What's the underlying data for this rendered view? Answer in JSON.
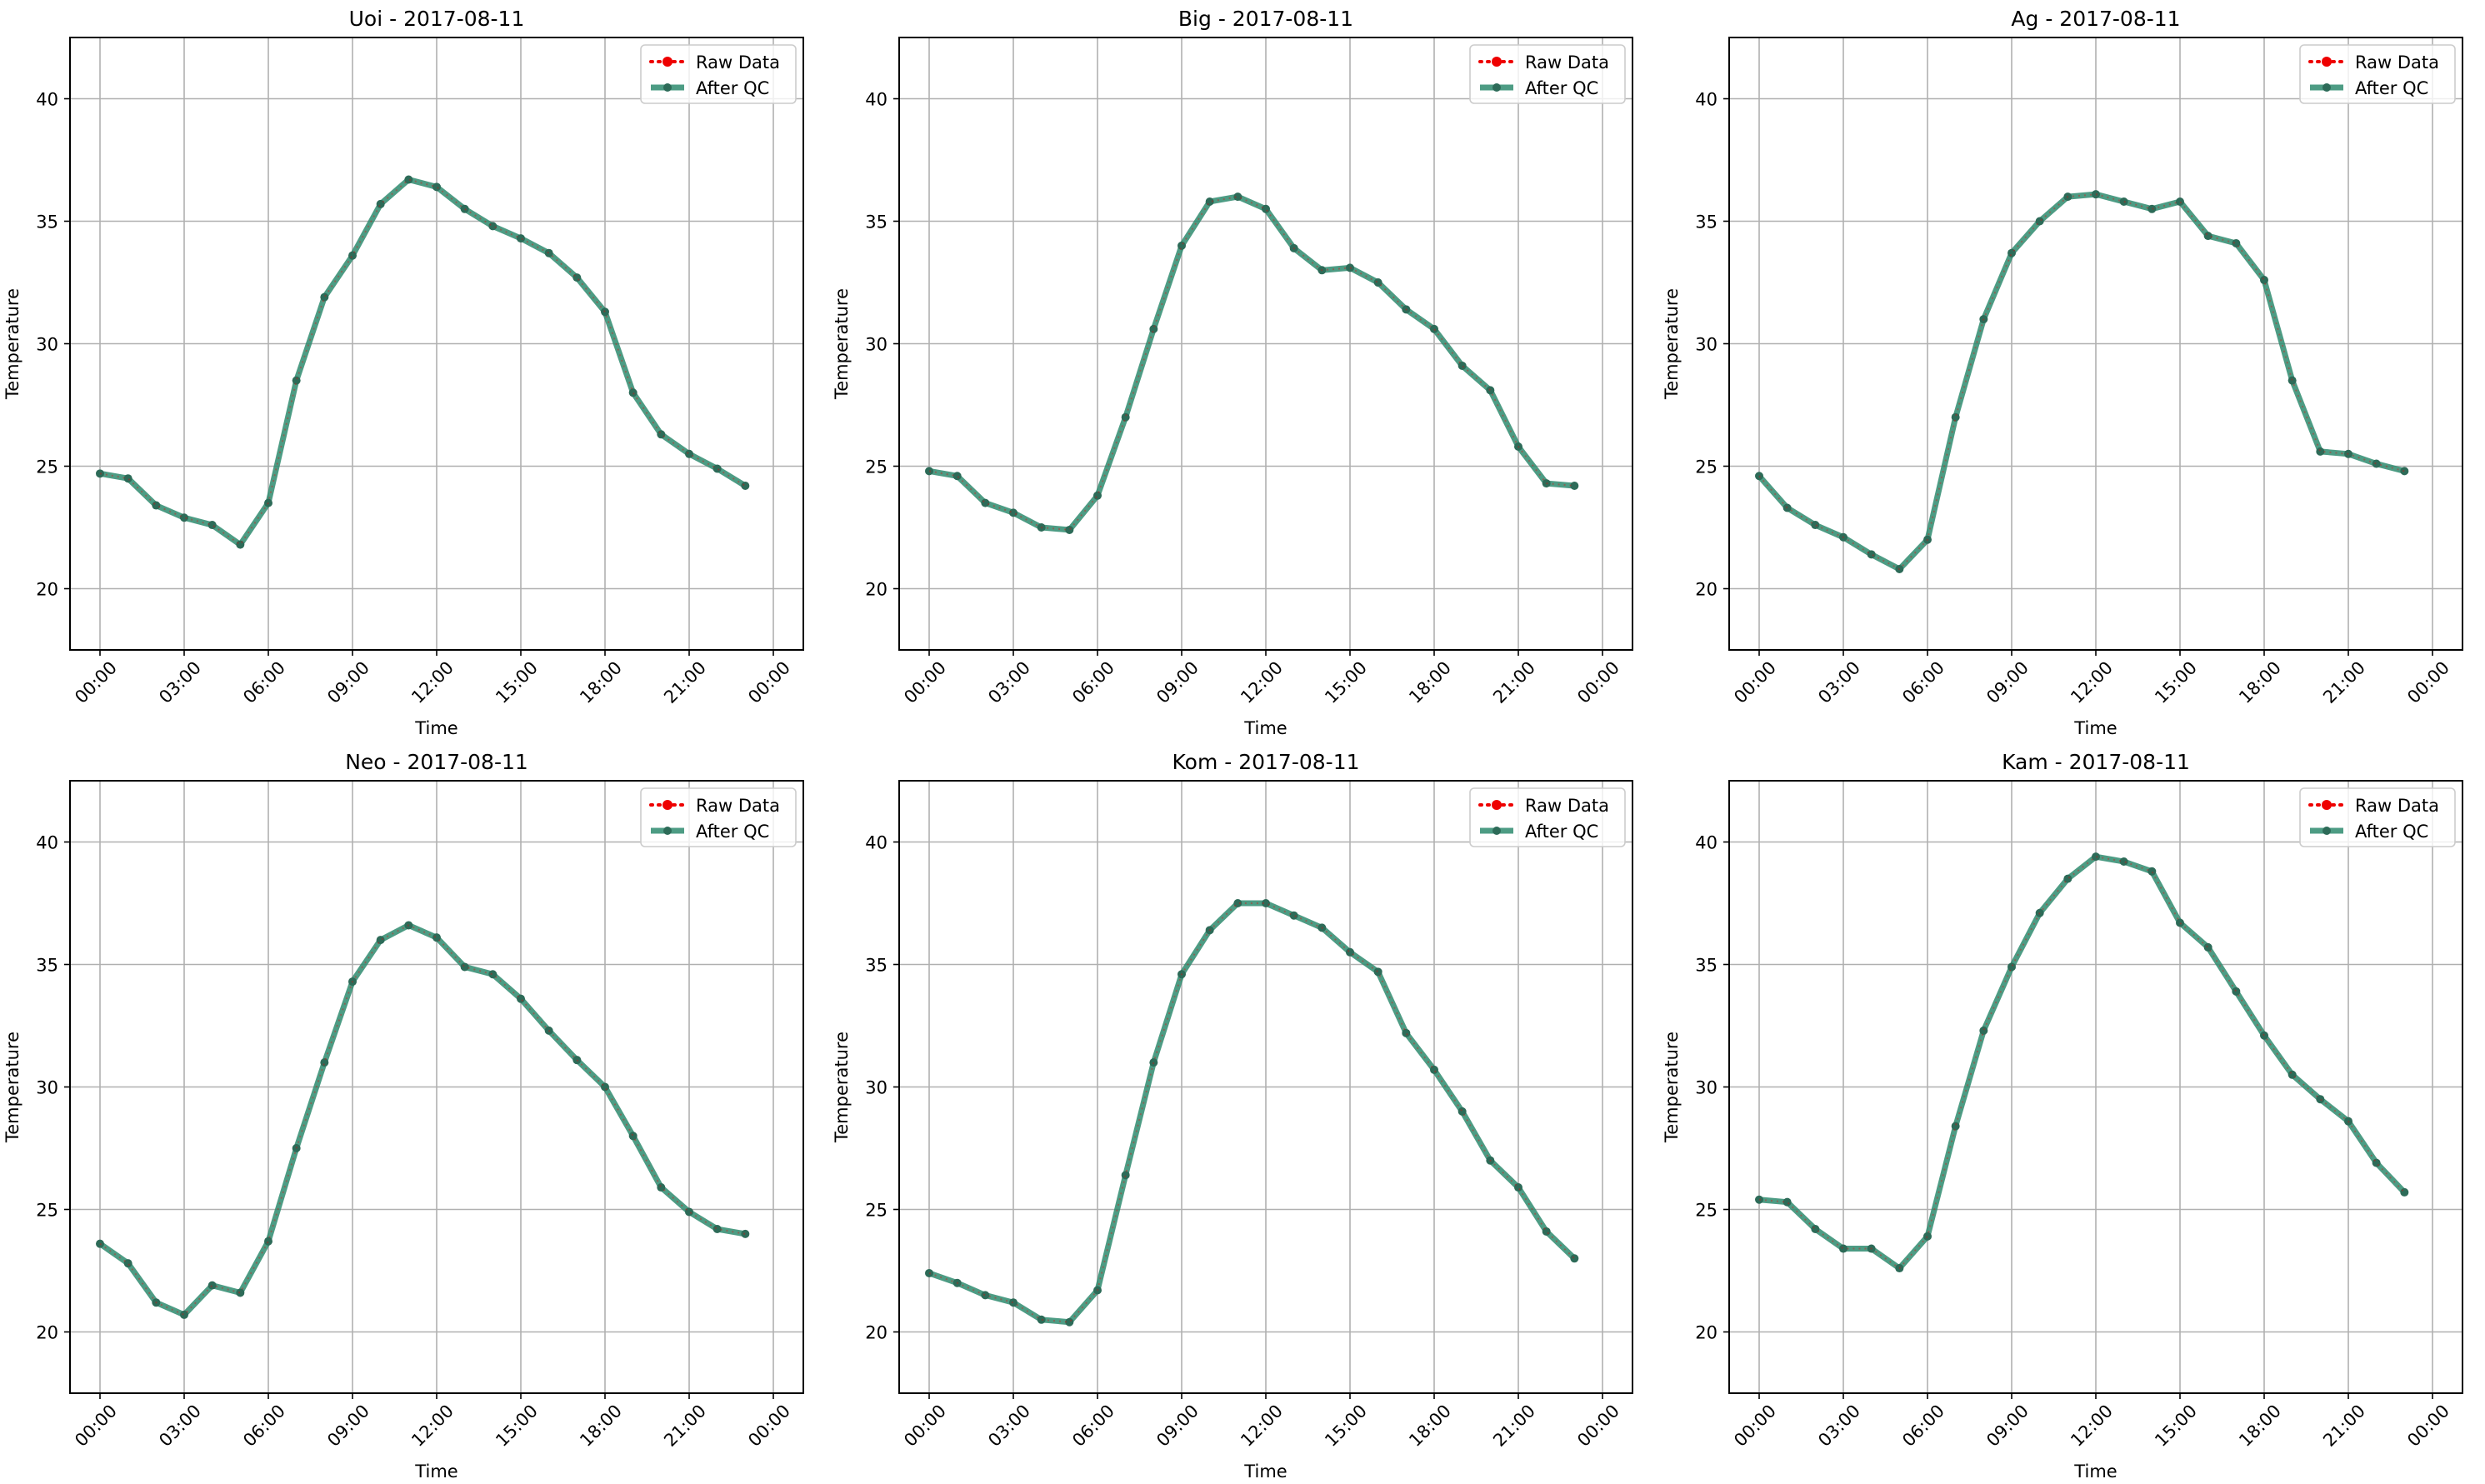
{
  "figure": {
    "ylabel": "Temperature",
    "xlabel": "Time",
    "legend": [
      "Raw Data",
      "After QC"
    ],
    "colors": {
      "raw": "#ee0000",
      "qc": "#2e8b6e",
      "qc_marker": "#2d6b58",
      "grid": "#b0b0b0"
    }
  },
  "chart_data": [
    {
      "type": "line",
      "title": "Uoi - 2017-08-11",
      "xlabel": "Time",
      "ylabel": "Temperature",
      "x": [
        "00:00",
        "01:00",
        "02:00",
        "03:00",
        "04:00",
        "05:00",
        "06:00",
        "07:00",
        "08:00",
        "09:00",
        "10:00",
        "11:00",
        "12:00",
        "13:00",
        "14:00",
        "15:00",
        "16:00",
        "17:00",
        "18:00",
        "19:00",
        "20:00",
        "21:00",
        "22:00",
        "23:00"
      ],
      "xticks": [
        "00:00",
        "03:00",
        "06:00",
        "09:00",
        "12:00",
        "15:00",
        "18:00",
        "21:00",
        "00:00"
      ],
      "yticks": [
        20,
        25,
        30,
        35,
        40
      ],
      "ylim": [
        17.5,
        42.5
      ],
      "grid": true,
      "legend_position": "upper right",
      "series": [
        {
          "name": "Raw Data",
          "values": [
            24.7,
            24.5,
            23.4,
            22.9,
            22.6,
            21.8,
            23.5,
            28.5,
            31.9,
            33.6,
            35.7,
            36.7,
            36.4,
            35.5,
            34.8,
            34.3,
            33.7,
            32.7,
            31.3,
            28.0,
            26.3,
            25.5,
            24.9,
            24.2
          ]
        },
        {
          "name": "After QC",
          "values": [
            24.7,
            24.5,
            23.4,
            22.9,
            22.6,
            21.8,
            23.5,
            28.5,
            31.9,
            33.6,
            35.7,
            36.7,
            36.4,
            35.5,
            34.8,
            34.3,
            33.7,
            32.7,
            31.3,
            28.0,
            26.3,
            25.5,
            24.9,
            24.2
          ]
        }
      ]
    },
    {
      "type": "line",
      "title": "Big - 2017-08-11",
      "xlabel": "Time",
      "ylabel": "Temperature",
      "x": [
        "00:00",
        "01:00",
        "02:00",
        "03:00",
        "04:00",
        "05:00",
        "06:00",
        "07:00",
        "08:00",
        "09:00",
        "10:00",
        "11:00",
        "12:00",
        "13:00",
        "14:00",
        "15:00",
        "16:00",
        "17:00",
        "18:00",
        "19:00",
        "20:00",
        "21:00",
        "22:00",
        "23:00"
      ],
      "xticks": [
        "00:00",
        "03:00",
        "06:00",
        "09:00",
        "12:00",
        "15:00",
        "18:00",
        "21:00",
        "00:00"
      ],
      "yticks": [
        20,
        25,
        30,
        35,
        40
      ],
      "ylim": [
        17.5,
        42.5
      ],
      "grid": true,
      "legend_position": "upper right",
      "series": [
        {
          "name": "Raw Data",
          "values": [
            24.8,
            24.6,
            23.5,
            23.1,
            22.5,
            22.4,
            23.8,
            27.0,
            30.6,
            34.0,
            35.8,
            36.0,
            35.5,
            33.9,
            33.0,
            33.1,
            32.5,
            31.4,
            30.6,
            29.1,
            28.1,
            25.8,
            24.3,
            24.2
          ]
        },
        {
          "name": "After QC",
          "values": [
            24.8,
            24.6,
            23.5,
            23.1,
            22.5,
            22.4,
            23.8,
            27.0,
            30.6,
            34.0,
            35.8,
            36.0,
            35.5,
            33.9,
            33.0,
            33.1,
            32.5,
            31.4,
            30.6,
            29.1,
            28.1,
            25.8,
            24.3,
            24.2
          ]
        }
      ]
    },
    {
      "type": "line",
      "title": "Ag - 2017-08-11",
      "xlabel": "Time",
      "ylabel": "Temperature",
      "x": [
        "00:00",
        "01:00",
        "02:00",
        "03:00",
        "04:00",
        "05:00",
        "06:00",
        "07:00",
        "08:00",
        "09:00",
        "10:00",
        "11:00",
        "12:00",
        "13:00",
        "14:00",
        "15:00",
        "16:00",
        "17:00",
        "18:00",
        "19:00",
        "20:00",
        "21:00",
        "22:00",
        "23:00"
      ],
      "xticks": [
        "00:00",
        "03:00",
        "06:00",
        "09:00",
        "12:00",
        "15:00",
        "18:00",
        "21:00",
        "00:00"
      ],
      "yticks": [
        20,
        25,
        30,
        35,
        40
      ],
      "ylim": [
        17.5,
        42.5
      ],
      "grid": true,
      "legend_position": "upper right",
      "series": [
        {
          "name": "Raw Data",
          "values": [
            24.6,
            23.3,
            22.6,
            22.1,
            21.4,
            20.8,
            22.0,
            27.0,
            31.0,
            33.7,
            35.0,
            36.0,
            36.1,
            35.8,
            35.5,
            35.8,
            34.4,
            34.1,
            32.6,
            28.5,
            25.6,
            25.5,
            25.1,
            24.8
          ]
        },
        {
          "name": "After QC",
          "values": [
            24.6,
            23.3,
            22.6,
            22.1,
            21.4,
            20.8,
            22.0,
            27.0,
            31.0,
            33.7,
            35.0,
            36.0,
            36.1,
            35.8,
            35.5,
            35.8,
            34.4,
            34.1,
            32.6,
            28.5,
            25.6,
            25.5,
            25.1,
            24.8
          ]
        }
      ]
    },
    {
      "type": "line",
      "title": "Neo - 2017-08-11",
      "xlabel": "Time",
      "ylabel": "Temperature",
      "x": [
        "00:00",
        "01:00",
        "02:00",
        "03:00",
        "04:00",
        "05:00",
        "06:00",
        "07:00",
        "08:00",
        "09:00",
        "10:00",
        "11:00",
        "12:00",
        "13:00",
        "14:00",
        "15:00",
        "16:00",
        "17:00",
        "18:00",
        "19:00",
        "20:00",
        "21:00",
        "22:00",
        "23:00"
      ],
      "xticks": [
        "00:00",
        "03:00",
        "06:00",
        "09:00",
        "12:00",
        "15:00",
        "18:00",
        "21:00",
        "00:00"
      ],
      "yticks": [
        20,
        25,
        30,
        35,
        40
      ],
      "ylim": [
        17.5,
        42.5
      ],
      "grid": true,
      "legend_position": "upper right",
      "series": [
        {
          "name": "Raw Data",
          "values": [
            23.6,
            22.8,
            21.2,
            20.7,
            21.9,
            21.6,
            23.7,
            27.5,
            31.0,
            34.3,
            36.0,
            36.6,
            36.1,
            34.9,
            34.6,
            33.6,
            32.3,
            31.1,
            30.0,
            28.0,
            25.9,
            24.9,
            24.2,
            24.0
          ]
        },
        {
          "name": "After QC",
          "values": [
            23.6,
            22.8,
            21.2,
            20.7,
            21.9,
            21.6,
            23.7,
            27.5,
            31.0,
            34.3,
            36.0,
            36.6,
            36.1,
            34.9,
            34.6,
            33.6,
            32.3,
            31.1,
            30.0,
            28.0,
            25.9,
            24.9,
            24.2,
            24.0
          ]
        }
      ]
    },
    {
      "type": "line",
      "title": "Kom - 2017-08-11",
      "xlabel": "Time",
      "ylabel": "Temperature",
      "x": [
        "00:00",
        "01:00",
        "02:00",
        "03:00",
        "04:00",
        "05:00",
        "06:00",
        "07:00",
        "08:00",
        "09:00",
        "10:00",
        "11:00",
        "12:00",
        "13:00",
        "14:00",
        "15:00",
        "16:00",
        "17:00",
        "18:00",
        "19:00",
        "20:00",
        "21:00",
        "22:00",
        "23:00"
      ],
      "xticks": [
        "00:00",
        "03:00",
        "06:00",
        "09:00",
        "12:00",
        "15:00",
        "18:00",
        "21:00",
        "00:00"
      ],
      "yticks": [
        20,
        25,
        30,
        35,
        40
      ],
      "ylim": [
        17.5,
        42.5
      ],
      "grid": true,
      "legend_position": "upper right",
      "series": [
        {
          "name": "Raw Data",
          "values": [
            22.4,
            22.0,
            21.5,
            21.2,
            20.5,
            20.4,
            21.7,
            26.4,
            31.0,
            34.6,
            36.4,
            37.5,
            37.5,
            37.0,
            36.5,
            35.5,
            34.7,
            32.2,
            30.7,
            29.0,
            27.0,
            25.9,
            24.1,
            23.0
          ]
        },
        {
          "name": "After QC",
          "values": [
            22.4,
            22.0,
            21.5,
            21.2,
            20.5,
            20.4,
            21.7,
            26.4,
            31.0,
            34.6,
            36.4,
            37.5,
            37.5,
            37.0,
            36.5,
            35.5,
            34.7,
            32.2,
            30.7,
            29.0,
            27.0,
            25.9,
            24.1,
            23.0
          ]
        }
      ]
    },
    {
      "type": "line",
      "title": "Kam - 2017-08-11",
      "xlabel": "Time",
      "ylabel": "Temperature",
      "x": [
        "00:00",
        "01:00",
        "02:00",
        "03:00",
        "04:00",
        "05:00",
        "06:00",
        "07:00",
        "08:00",
        "09:00",
        "10:00",
        "11:00",
        "12:00",
        "13:00",
        "14:00",
        "15:00",
        "16:00",
        "17:00",
        "18:00",
        "19:00",
        "20:00",
        "21:00",
        "22:00",
        "23:00"
      ],
      "xticks": [
        "00:00",
        "03:00",
        "06:00",
        "09:00",
        "12:00",
        "15:00",
        "18:00",
        "21:00",
        "00:00"
      ],
      "yticks": [
        20,
        25,
        30,
        35,
        40
      ],
      "ylim": [
        17.5,
        42.5
      ],
      "grid": true,
      "legend_position": "upper right",
      "series": [
        {
          "name": "Raw Data",
          "values": [
            25.4,
            25.3,
            24.2,
            23.4,
            23.4,
            22.6,
            23.9,
            28.4,
            32.3,
            34.9,
            37.1,
            38.5,
            39.4,
            39.2,
            38.8,
            36.7,
            35.7,
            33.9,
            32.1,
            30.5,
            29.5,
            28.6,
            26.9,
            25.7
          ]
        },
        {
          "name": "After QC",
          "values": [
            25.4,
            25.3,
            24.2,
            23.4,
            23.4,
            22.6,
            23.9,
            28.4,
            32.3,
            34.9,
            37.1,
            38.5,
            39.4,
            39.2,
            38.8,
            36.7,
            35.7,
            33.9,
            32.1,
            30.5,
            29.5,
            28.6,
            26.9,
            25.7
          ]
        }
      ]
    }
  ]
}
